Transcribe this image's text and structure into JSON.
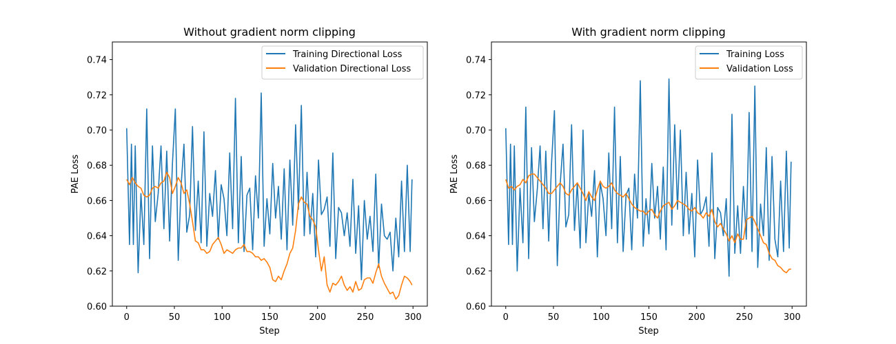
{
  "chart_data": [
    {
      "type": "line",
      "title": "Without gradient norm clipping",
      "xlabel": "Step",
      "ylabel": "PAE Loss",
      "xlim": [
        -15,
        315
      ],
      "ylim": [
        0.6,
        0.75
      ],
      "xticks": [
        0,
        50,
        100,
        150,
        200,
        250,
        300
      ],
      "yticks": [
        0.6,
        0.62,
        0.64,
        0.66,
        0.68,
        0.7,
        0.72,
        0.74
      ],
      "grid": false,
      "legend_position": "top-right",
      "series": [
        {
          "name": "Training Directional Loss",
          "color": "#1f77b4",
          "x": [
            0,
            3,
            5,
            7,
            9,
            12,
            15,
            18,
            21,
            24,
            27,
            30,
            33,
            36,
            39,
            42,
            45,
            48,
            51,
            54,
            57,
            60,
            63,
            66,
            69,
            72,
            75,
            78,
            81,
            84,
            87,
            90,
            93,
            96,
            99,
            102,
            105,
            108,
            111,
            114,
            117,
            120,
            123,
            126,
            129,
            132,
            135,
            138,
            141,
            144,
            147,
            150,
            153,
            156,
            159,
            162,
            165,
            168,
            171,
            174,
            177,
            180,
            183,
            186,
            189,
            192,
            195,
            198,
            201,
            204,
            207,
            210,
            213,
            216,
            219,
            222,
            225,
            228,
            231,
            234,
            237,
            240,
            243,
            246,
            249,
            252,
            255,
            258,
            261,
            264,
            267,
            270,
            273,
            276,
            279,
            282,
            285,
            288,
            291,
            294,
            297,
            299
          ],
          "values": [
            0.701,
            0.635,
            0.692,
            0.635,
            0.691,
            0.619,
            0.664,
            0.635,
            0.712,
            0.627,
            0.691,
            0.648,
            0.664,
            0.691,
            0.644,
            0.688,
            0.637,
            0.681,
            0.712,
            0.626,
            0.668,
            0.692,
            0.642,
            0.652,
            0.702,
            0.643,
            0.671,
            0.636,
            0.699,
            0.634,
            0.664,
            0.651,
            0.677,
            0.638,
            0.669,
            0.661,
            0.64,
            0.687,
            0.644,
            0.718,
            0.636,
            0.685,
            0.631,
            0.663,
            0.667,
            0.632,
            0.674,
            0.65,
            0.721,
            0.634,
            0.661,
            0.641,
            0.681,
            0.65,
            0.668,
            0.638,
            0.678,
            0.632,
            0.683,
            0.646,
            0.703,
            0.655,
            0.714,
            0.64,
            0.676,
            0.641,
            0.664,
            0.628,
            0.683,
            0.652,
            0.655,
            0.662,
            0.634,
            0.687,
            0.627,
            0.656,
            0.653,
            0.64,
            0.653,
            0.634,
            0.672,
            0.63,
            0.657,
            0.615,
            0.66,
            0.638,
            0.651,
            0.631,
            0.675,
            0.622,
            0.658,
            0.64,
            0.638,
            0.642,
            0.62,
            0.65,
            0.628,
            0.671,
            0.631,
            0.68,
            0.631,
            0.672
          ]
        },
        {
          "name": "Validation Directional Loss",
          "color": "#ff7f0e",
          "x": [
            0,
            3,
            6,
            9,
            12,
            15,
            18,
            21,
            24,
            27,
            30,
            33,
            36,
            39,
            42,
            45,
            48,
            51,
            54,
            57,
            60,
            63,
            66,
            69,
            72,
            75,
            78,
            81,
            84,
            87,
            90,
            93,
            96,
            99,
            102,
            105,
            108,
            111,
            114,
            117,
            120,
            123,
            126,
            129,
            132,
            135,
            138,
            141,
            144,
            147,
            150,
            153,
            156,
            159,
            162,
            165,
            168,
            171,
            174,
            177,
            180,
            183,
            186,
            189,
            192,
            195,
            198,
            201,
            204,
            207,
            210,
            213,
            216,
            219,
            222,
            225,
            228,
            231,
            234,
            237,
            240,
            243,
            246,
            249,
            252,
            255,
            258,
            261,
            264,
            267,
            270,
            273,
            276,
            279,
            282,
            285,
            288,
            291,
            294,
            297,
            299
          ],
          "values": [
            0.672,
            0.669,
            0.673,
            0.67,
            0.668,
            0.667,
            0.663,
            0.662,
            0.663,
            0.667,
            0.668,
            0.667,
            0.67,
            0.671,
            0.676,
            0.673,
            0.664,
            0.668,
            0.673,
            0.67,
            0.664,
            0.666,
            0.658,
            0.648,
            0.637,
            0.636,
            0.632,
            0.632,
            0.63,
            0.631,
            0.635,
            0.637,
            0.639,
            0.635,
            0.63,
            0.632,
            0.631,
            0.63,
            0.632,
            0.633,
            0.633,
            0.635,
            0.631,
            0.631,
            0.63,
            0.628,
            0.628,
            0.626,
            0.627,
            0.625,
            0.622,
            0.615,
            0.614,
            0.617,
            0.615,
            0.62,
            0.624,
            0.63,
            0.633,
            0.643,
            0.658,
            0.662,
            0.659,
            0.658,
            0.651,
            0.649,
            0.645,
            0.632,
            0.62,
            0.628,
            0.612,
            0.608,
            0.613,
            0.612,
            0.614,
            0.617,
            0.612,
            0.609,
            0.611,
            0.608,
            0.614,
            0.609,
            0.61,
            0.615,
            0.616,
            0.616,
            0.613,
            0.619,
            0.624,
            0.617,
            0.613,
            0.61,
            0.607,
            0.608,
            0.604,
            0.606,
            0.612,
            0.617,
            0.616,
            0.614,
            0.612
          ]
        }
      ]
    },
    {
      "type": "line",
      "title": "With gradient norm clipping",
      "xlabel": "Step",
      "ylabel": "PAE Loss",
      "xlim": [
        -15,
        315
      ],
      "ylim": [
        0.6,
        0.75
      ],
      "xticks": [
        0,
        50,
        100,
        150,
        200,
        250,
        300
      ],
      "yticks": [
        0.6,
        0.62,
        0.64,
        0.66,
        0.68,
        0.7,
        0.72,
        0.74
      ],
      "grid": false,
      "legend_position": "top-right",
      "series": [
        {
          "name": "Training Loss",
          "color": "#1f77b4",
          "x": [
            0,
            3,
            5,
            7,
            9,
            12,
            15,
            18,
            21,
            24,
            27,
            30,
            33,
            36,
            39,
            42,
            45,
            48,
            51,
            54,
            57,
            60,
            63,
            66,
            69,
            72,
            75,
            78,
            81,
            84,
            87,
            90,
            93,
            96,
            99,
            102,
            105,
            108,
            111,
            114,
            117,
            120,
            123,
            126,
            129,
            132,
            135,
            138,
            141,
            144,
            147,
            150,
            153,
            156,
            159,
            162,
            165,
            168,
            171,
            174,
            177,
            180,
            183,
            186,
            189,
            192,
            195,
            198,
            201,
            204,
            207,
            210,
            213,
            216,
            219,
            222,
            225,
            228,
            231,
            234,
            237,
            240,
            243,
            246,
            249,
            252,
            255,
            258,
            261,
            264,
            267,
            270,
            273,
            276,
            279,
            282,
            285,
            288,
            291,
            294,
            297,
            299
          ],
          "values": [
            0.701,
            0.635,
            0.692,
            0.635,
            0.691,
            0.62,
            0.667,
            0.636,
            0.713,
            0.627,
            0.69,
            0.648,
            0.666,
            0.691,
            0.644,
            0.688,
            0.637,
            0.681,
            0.711,
            0.623,
            0.669,
            0.692,
            0.645,
            0.652,
            0.703,
            0.643,
            0.67,
            0.633,
            0.7,
            0.636,
            0.664,
            0.651,
            0.677,
            0.628,
            0.67,
            0.661,
            0.64,
            0.687,
            0.644,
            0.713,
            0.636,
            0.685,
            0.631,
            0.663,
            0.667,
            0.632,
            0.675,
            0.65,
            0.728,
            0.634,
            0.661,
            0.641,
            0.681,
            0.65,
            0.668,
            0.638,
            0.679,
            0.632,
            0.729,
            0.646,
            0.703,
            0.655,
            0.7,
            0.64,
            0.676,
            0.641,
            0.664,
            0.628,
            0.683,
            0.652,
            0.655,
            0.662,
            0.634,
            0.687,
            0.627,
            0.656,
            0.653,
            0.64,
            0.661,
            0.617,
            0.709,
            0.63,
            0.657,
            0.63,
            0.668,
            0.638,
            0.71,
            0.631,
            0.725,
            0.622,
            0.658,
            0.64,
            0.69,
            0.626,
            0.685,
            0.638,
            0.628,
            0.671,
            0.631,
            0.688,
            0.633,
            0.682
          ]
        },
        {
          "name": "Validation Loss",
          "color": "#ff7f0e",
          "x": [
            0,
            3,
            6,
            9,
            12,
            15,
            18,
            21,
            24,
            27,
            30,
            33,
            36,
            39,
            42,
            45,
            48,
            51,
            54,
            57,
            60,
            63,
            66,
            69,
            72,
            75,
            78,
            81,
            84,
            87,
            90,
            93,
            96,
            99,
            102,
            105,
            108,
            111,
            114,
            117,
            120,
            123,
            126,
            129,
            132,
            135,
            138,
            141,
            144,
            147,
            150,
            153,
            156,
            159,
            162,
            165,
            168,
            171,
            174,
            177,
            180,
            183,
            186,
            189,
            192,
            195,
            198,
            201,
            204,
            207,
            210,
            213,
            216,
            219,
            222,
            225,
            228,
            231,
            234,
            237,
            240,
            243,
            246,
            249,
            252,
            255,
            258,
            261,
            264,
            267,
            270,
            273,
            276,
            279,
            282,
            285,
            288,
            291,
            294,
            297,
            299
          ],
          "values": [
            0.672,
            0.667,
            0.668,
            0.666,
            0.668,
            0.669,
            0.672,
            0.67,
            0.674,
            0.675,
            0.675,
            0.673,
            0.671,
            0.669,
            0.667,
            0.664,
            0.664,
            0.666,
            0.668,
            0.67,
            0.668,
            0.664,
            0.663,
            0.666,
            0.668,
            0.67,
            0.667,
            0.664,
            0.66,
            0.665,
            0.662,
            0.66,
            0.666,
            0.671,
            0.668,
            0.667,
            0.668,
            0.67,
            0.666,
            0.664,
            0.663,
            0.662,
            0.664,
            0.661,
            0.658,
            0.656,
            0.655,
            0.654,
            0.654,
            0.652,
            0.654,
            0.655,
            0.652,
            0.65,
            0.654,
            0.657,
            0.658,
            0.659,
            0.655,
            0.657,
            0.66,
            0.659,
            0.658,
            0.657,
            0.655,
            0.654,
            0.656,
            0.653,
            0.652,
            0.65,
            0.653,
            0.651,
            0.655,
            0.648,
            0.645,
            0.647,
            0.644,
            0.641,
            0.637,
            0.64,
            0.636,
            0.641,
            0.638,
            0.638,
            0.649,
            0.65,
            0.651,
            0.648,
            0.644,
            0.64,
            0.636,
            0.635,
            0.63,
            0.627,
            0.626,
            0.623,
            0.622,
            0.62,
            0.619,
            0.621,
            0.621
          ]
        }
      ]
    }
  ]
}
